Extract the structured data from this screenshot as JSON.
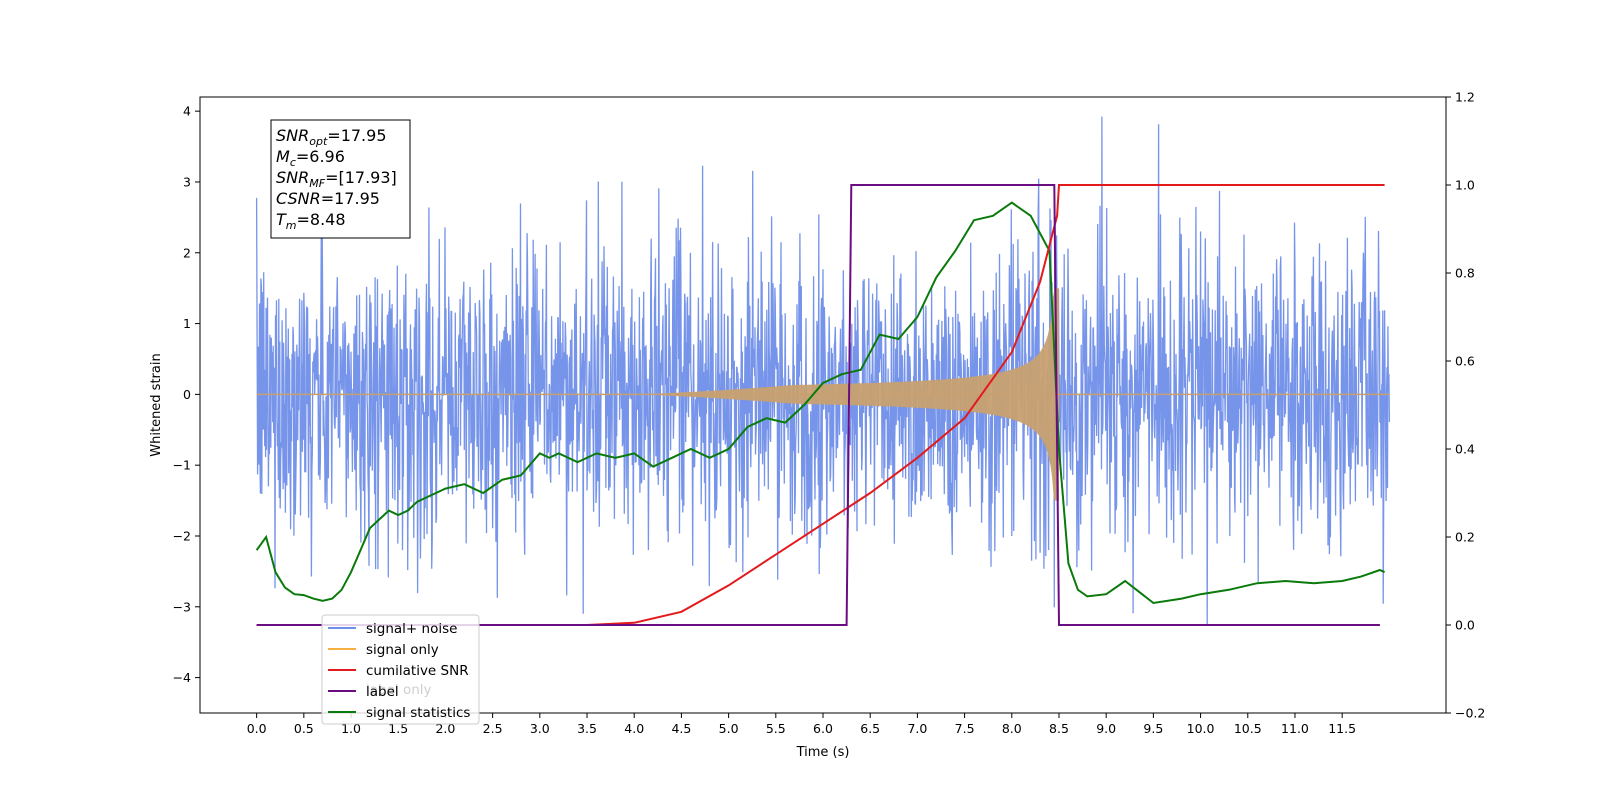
{
  "chart_data": {
    "type": "line",
    "xlabel": "Time (s)",
    "ylabel_left": "Whitened strain",
    "xlim": [
      -0.6,
      12.6
    ],
    "ylim_left": [
      -4.5,
      4.2
    ],
    "ylim_right": [
      -0.2,
      1.2
    ],
    "xticks": [
      "0.0",
      "0.5",
      "1.0",
      "1.5",
      "2.0",
      "2.5",
      "3.0",
      "3.5",
      "4.0",
      "4.5",
      "5.0",
      "5.5",
      "6.0",
      "6.5",
      "7.0",
      "7.5",
      "8.0",
      "8.5",
      "9.0",
      "9.5",
      "10.0",
      "10.5",
      "11.0",
      "11.5"
    ],
    "yticks_left": [
      "4",
      "3",
      "2",
      "1",
      "0",
      "−1",
      "−2",
      "−3",
      "−4"
    ],
    "yticks_right": [
      "1.2",
      "1.0",
      "0.8",
      "0.6",
      "0.4",
      "0.2",
      "0.0",
      "−0.2"
    ],
    "annotation": {
      "lines": [
        {
          "name": "SNR",
          "sub": "opt",
          "value": "=17.95"
        },
        {
          "name": "M",
          "sub": "c",
          "value": "=6.96"
        },
        {
          "name": "SNR",
          "sub": "MF",
          "value": "=[17.93]"
        },
        {
          "name": "CSNR",
          "sub": "",
          "value": "=17.95"
        },
        {
          "name": "T",
          "sub": "m",
          "value": "=8.48"
        }
      ]
    },
    "legend": {
      "placement": "lower-left",
      "entries": [
        {
          "label": "signal+ noise",
          "color": "#6f8ee8"
        },
        {
          "label": "signal only",
          "color": "#f5b041"
        },
        {
          "label": "cumilative SNR",
          "color": "#e31a1c"
        },
        {
          "label": "label",
          "color": "#6a0d83"
        },
        {
          "label": "signal statistics",
          "color": "#0a7a0a"
        }
      ],
      "hidden_text": "label only"
    },
    "series": [
      {
        "name": "signal+ noise",
        "axis": "left",
        "color": "#6f8ee8",
        "description": "whitened strain noise, sigma approx 1.0, t from 0 to 12",
        "t_range": [
          0,
          12
        ],
        "sigma": 1.0
      },
      {
        "name": "signal only",
        "axis": "left",
        "color": "#c8a070",
        "chirp": {
          "t_start": 4.1,
          "t_merge": 8.48,
          "amp_peak": 1.5,
          "amp_mid": 0.2
        }
      },
      {
        "name": "cumilative SNR",
        "axis": "right",
        "color": "#e31a1c",
        "x": [
          0,
          3.5,
          4.0,
          4.5,
          5.0,
          5.5,
          6.0,
          6.5,
          7.0,
          7.5,
          8.0,
          8.3,
          8.48,
          8.5,
          11.95
        ],
        "y": [
          0,
          0,
          0.005,
          0.03,
          0.09,
          0.16,
          0.23,
          0.3,
          0.38,
          0.47,
          0.62,
          0.78,
          0.93,
          1.0,
          1.0
        ]
      },
      {
        "name": "label",
        "axis": "right",
        "color": "#6a0d83",
        "x": [
          0,
          6.25,
          6.3,
          8.45,
          8.5,
          11.9
        ],
        "y": [
          0,
          0,
          1,
          1,
          0,
          0
        ]
      },
      {
        "name": "signal statistics",
        "axis": "right",
        "color": "#0a7a0a",
        "x": [
          0,
          0.1,
          0.2,
          0.3,
          0.4,
          0.5,
          0.6,
          0.7,
          0.8,
          0.9,
          1.0,
          1.1,
          1.2,
          1.3,
          1.4,
          1.5,
          1.6,
          1.7,
          1.8,
          1.9,
          2.0,
          2.2,
          2.4,
          2.6,
          2.8,
          3.0,
          3.1,
          3.2,
          3.4,
          3.6,
          3.8,
          4.0,
          4.2,
          4.4,
          4.6,
          4.8,
          5.0,
          5.2,
          5.4,
          5.6,
          5.8,
          6.0,
          6.2,
          6.4,
          6.6,
          6.8,
          7.0,
          7.2,
          7.4,
          7.6,
          7.8,
          8.0,
          8.2,
          8.4,
          8.5,
          8.6,
          8.7,
          8.8,
          9.0,
          9.2,
          9.5,
          9.8,
          10.0,
          10.3,
          10.6,
          10.9,
          11.2,
          11.5,
          11.7,
          11.9,
          11.95
        ],
        "y": [
          0.17,
          0.2,
          0.12,
          0.085,
          0.07,
          0.068,
          0.06,
          0.055,
          0.06,
          0.08,
          0.12,
          0.17,
          0.22,
          0.24,
          0.26,
          0.25,
          0.26,
          0.28,
          0.29,
          0.3,
          0.31,
          0.32,
          0.3,
          0.33,
          0.34,
          0.39,
          0.38,
          0.39,
          0.37,
          0.39,
          0.38,
          0.39,
          0.36,
          0.38,
          0.4,
          0.38,
          0.4,
          0.45,
          0.47,
          0.46,
          0.5,
          0.55,
          0.57,
          0.58,
          0.66,
          0.65,
          0.7,
          0.79,
          0.85,
          0.92,
          0.93,
          0.96,
          0.93,
          0.85,
          0.4,
          0.14,
          0.08,
          0.065,
          0.07,
          0.1,
          0.05,
          0.06,
          0.07,
          0.08,
          0.095,
          0.1,
          0.095,
          0.1,
          0.11,
          0.125,
          0.12
        ]
      }
    ]
  }
}
